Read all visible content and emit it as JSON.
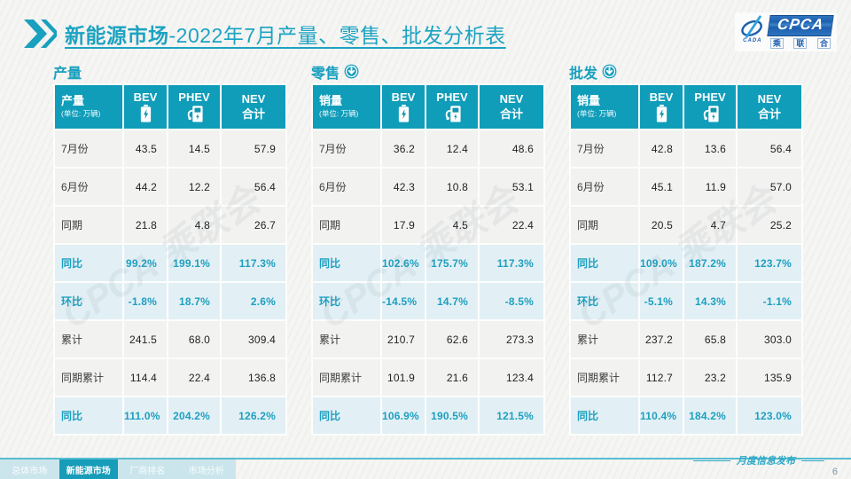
{
  "title": {
    "highlight": "新能源市场",
    "rest": "-2022年7月产量、零售、批发分析表"
  },
  "logo": {
    "acronym": "CPCA",
    "swoosh_caption": "CADA",
    "cn_chars": [
      "乘",
      "联",
      "合"
    ]
  },
  "watermark_text": "CPCA 乘联会",
  "sections": [
    {
      "title": "产量",
      "has_arrow": false,
      "first_col": "产量",
      "unit": "(单位: 万辆)",
      "columns": [
        {
          "label": "BEV",
          "icon": "battery-icon"
        },
        {
          "label": "PHEV",
          "icon": "ev-charger-icon"
        },
        {
          "label": "NEV",
          "sub": "合计"
        }
      ],
      "rows": [
        {
          "label": "7月份",
          "values": [
            "43.5",
            "14.5",
            "57.9"
          ],
          "highlight": false
        },
        {
          "label": "6月份",
          "values": [
            "44.2",
            "12.2",
            "56.4"
          ],
          "highlight": false
        },
        {
          "label": "同期",
          "values": [
            "21.8",
            "4.8",
            "26.7"
          ],
          "highlight": false
        },
        {
          "label": "同比",
          "values": [
            "99.2%",
            "199.1%",
            "117.3%"
          ],
          "highlight": true
        },
        {
          "label": "环比",
          "values": [
            "-1.8%",
            "18.7%",
            "2.6%"
          ],
          "highlight": true
        },
        {
          "label": "累计",
          "values": [
            "241.5",
            "68.0",
            "309.4"
          ],
          "highlight": false
        },
        {
          "label": "同期累计",
          "values": [
            "114.4",
            "22.4",
            "136.8"
          ],
          "highlight": false
        },
        {
          "label": "同比",
          "values": [
            "111.0%",
            "204.2%",
            "126.2%"
          ],
          "highlight": true
        }
      ]
    },
    {
      "title": "零售",
      "has_arrow": true,
      "first_col": "销量",
      "unit": "(单位: 万辆)",
      "columns": [
        {
          "label": "BEV",
          "icon": "battery-icon"
        },
        {
          "label": "PHEV",
          "icon": "ev-charger-icon"
        },
        {
          "label": "NEV",
          "sub": "合计"
        }
      ],
      "rows": [
        {
          "label": "7月份",
          "values": [
            "36.2",
            "12.4",
            "48.6"
          ],
          "highlight": false
        },
        {
          "label": "6月份",
          "values": [
            "42.3",
            "10.8",
            "53.1"
          ],
          "highlight": false
        },
        {
          "label": "同期",
          "values": [
            "17.9",
            "4.5",
            "22.4"
          ],
          "highlight": false
        },
        {
          "label": "同比",
          "values": [
            "102.6%",
            "175.7%",
            "117.3%"
          ],
          "highlight": true
        },
        {
          "label": "环比",
          "values": [
            "-14.5%",
            "14.7%",
            "-8.5%"
          ],
          "highlight": true
        },
        {
          "label": "累计",
          "values": [
            "210.7",
            "62.6",
            "273.3"
          ],
          "highlight": false
        },
        {
          "label": "同期累计",
          "values": [
            "101.9",
            "21.6",
            "123.4"
          ],
          "highlight": false
        },
        {
          "label": "同比",
          "values": [
            "106.9%",
            "190.5%",
            "121.5%"
          ],
          "highlight": true
        }
      ]
    },
    {
      "title": "批发",
      "has_arrow": true,
      "first_col": "销量",
      "unit": "(单位: 万辆)",
      "columns": [
        {
          "label": "BEV",
          "icon": "battery-icon"
        },
        {
          "label": "PHEV",
          "icon": "ev-charger-icon"
        },
        {
          "label": "NEV",
          "sub": "合计"
        }
      ],
      "rows": [
        {
          "label": "7月份",
          "values": [
            "42.8",
            "13.6",
            "56.4"
          ],
          "highlight": false
        },
        {
          "label": "6月份",
          "values": [
            "45.1",
            "11.9",
            "57.0"
          ],
          "highlight": false
        },
        {
          "label": "同期",
          "values": [
            "20.5",
            "4.7",
            "25.2"
          ],
          "highlight": false
        },
        {
          "label": "同比",
          "values": [
            "109.0%",
            "187.2%",
            "123.7%"
          ],
          "highlight": true
        },
        {
          "label": "环比",
          "values": [
            "-5.1%",
            "14.3%",
            "-1.1%"
          ],
          "highlight": true
        },
        {
          "label": "累计",
          "values": [
            "237.2",
            "65.8",
            "303.0"
          ],
          "highlight": false
        },
        {
          "label": "同期累计",
          "values": [
            "112.7",
            "23.2",
            "135.9"
          ],
          "highlight": false
        },
        {
          "label": "同比",
          "values": [
            "110.4%",
            "184.2%",
            "123.0%"
          ],
          "highlight": true
        }
      ]
    }
  ],
  "footer": {
    "tabs": [
      {
        "label": "总体市场",
        "active": false
      },
      {
        "label": "新能源市场",
        "active": true
      },
      {
        "label": "厂商排名",
        "active": false
      },
      {
        "label": "市场分析",
        "active": false
      }
    ],
    "publish_label": "月度信息发布",
    "page_number": "6"
  },
  "colors": {
    "accent_teal": "#109dba",
    "title_cyan": "#1ca3c2",
    "highlight_row_bg": "#e2f0f5",
    "highlight_text": "#1e9fc0",
    "row_bg": "#f2f2f0",
    "active_tab_bg": "#179cb9",
    "logo_blue": "#1d5fae"
  }
}
